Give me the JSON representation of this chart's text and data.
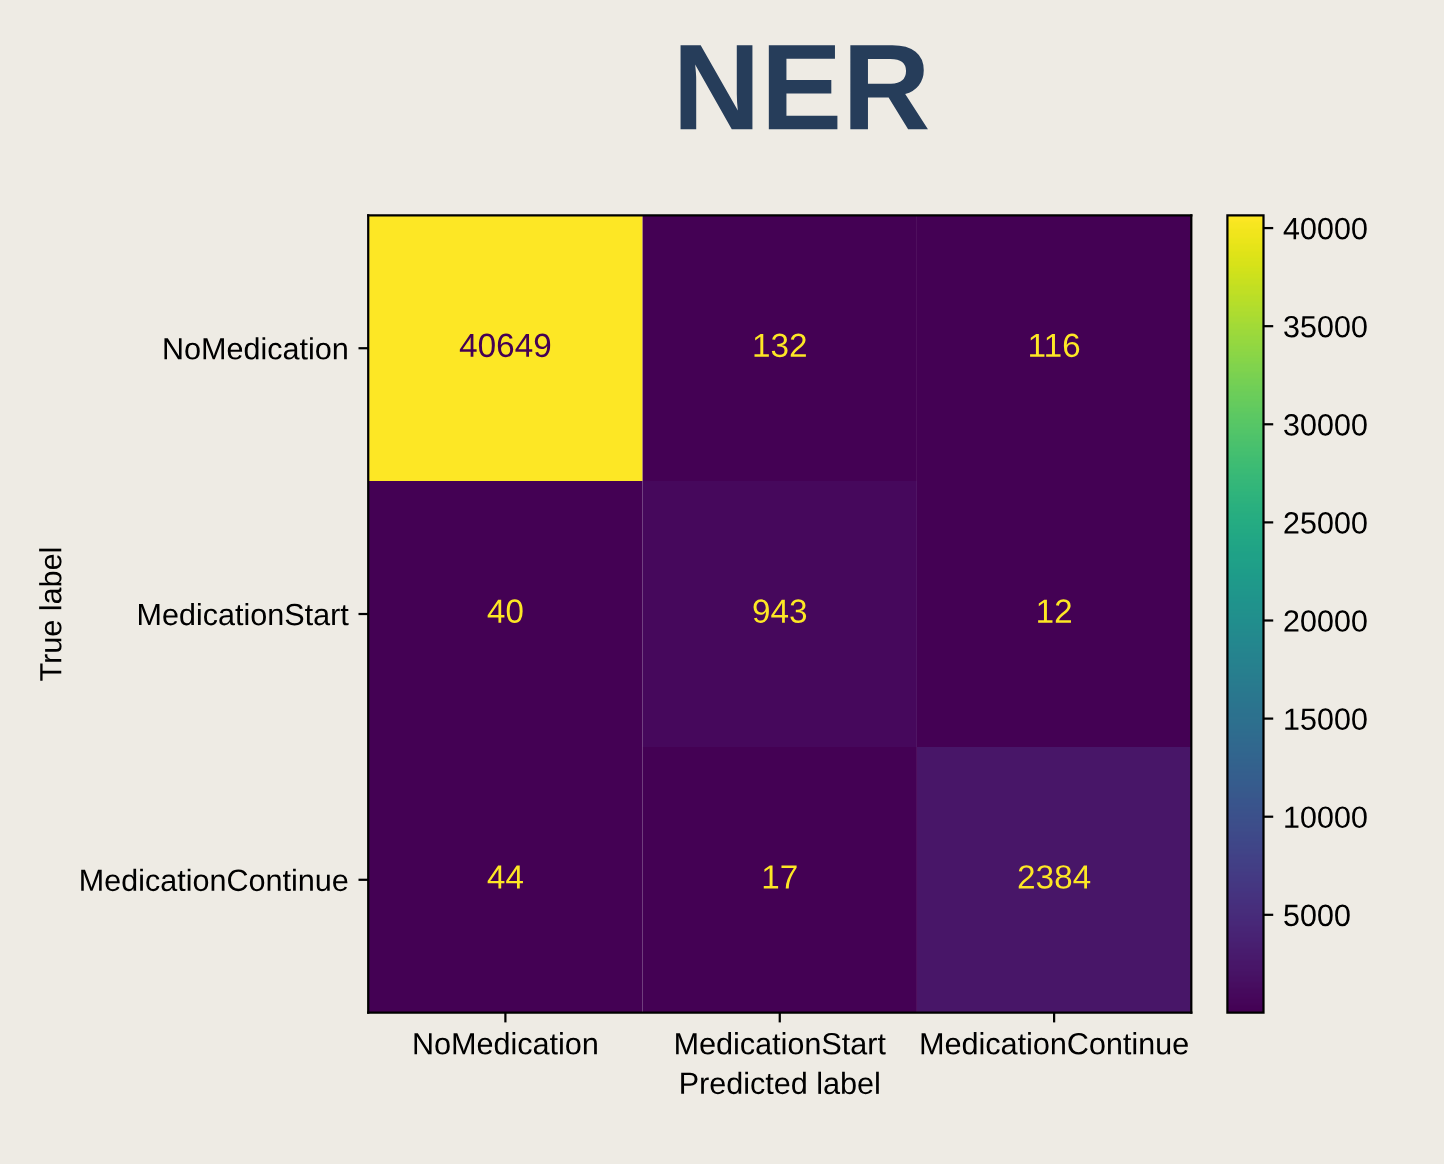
{
  "chart_data": {
    "type": "heatmap",
    "title": "NER",
    "xlabel": "Predicted label",
    "ylabel": "True label",
    "categories": [
      "NoMedication",
      "MedicationStart",
      "MedicationContinue"
    ],
    "y_categories": [
      "NoMedication",
      "MedicationStart",
      "MedicationContinue"
    ],
    "cells": [
      [
        40649,
        132,
        116
      ],
      [
        40,
        943,
        12
      ],
      [
        44,
        17,
        2384
      ]
    ],
    "data_labels": true,
    "clim": [
      12,
      40649
    ],
    "cticks": [
      5000,
      10000,
      15000,
      20000,
      25000,
      30000,
      35000,
      40000
    ]
  }
}
